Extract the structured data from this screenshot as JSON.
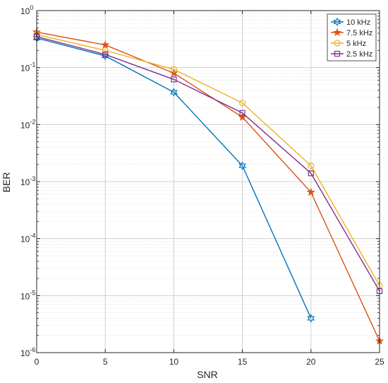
{
  "chart_data": {
    "type": "line",
    "xlabel": "SNR",
    "ylabel": "BER",
    "yscale": "log",
    "xlim": [
      0,
      25
    ],
    "ylim": [
      1e-06,
      1
    ],
    "grid": true,
    "minor_grid": true,
    "legend_position": "top-right",
    "x_ticks": [
      "0",
      "5",
      "10",
      "15",
      "20",
      "25"
    ],
    "y_ticks": [
      {
        "base": "10",
        "exp": "-6",
        "value": 1e-06
      },
      {
        "base": "10",
        "exp": "-5",
        "value": 1e-05
      },
      {
        "base": "10",
        "exp": "-4",
        "value": 0.0001
      },
      {
        "base": "10",
        "exp": "-3",
        "value": 0.001
      },
      {
        "base": "10",
        "exp": "-2",
        "value": 0.01
      },
      {
        "base": "10",
        "exp": "-1",
        "value": 0.1
      },
      {
        "base": "10",
        "exp": "0",
        "value": 1
      }
    ],
    "series": [
      {
        "name": "10 kHz",
        "color": "#0072BD",
        "marker": "hexagram",
        "x": [
          0,
          5,
          10,
          15,
          20
        ],
        "y": [
          0.33,
          0.16,
          0.037,
          0.0019,
          4e-06
        ]
      },
      {
        "name": "7.5 kHz",
        "color": "#D95319",
        "marker": "pentagram",
        "x": [
          0,
          5,
          10,
          15,
          20,
          25
        ],
        "y": [
          0.42,
          0.25,
          0.08,
          0.0135,
          0.00065,
          1.6e-06
        ]
      },
      {
        "name": "5 kHz",
        "color": "#EDB120",
        "marker": "circle",
        "x": [
          0,
          5,
          10,
          15,
          20,
          25
        ],
        "y": [
          0.38,
          0.2,
          0.093,
          0.024,
          0.0019,
          1.5e-05
        ]
      },
      {
        "name": "2.5 kHz",
        "color": "#7E2F8E",
        "marker": "square",
        "x": [
          0,
          5,
          10,
          15,
          20,
          25
        ],
        "y": [
          0.35,
          0.17,
          0.062,
          0.016,
          0.0014,
          1.2e-05
        ]
      }
    ]
  }
}
